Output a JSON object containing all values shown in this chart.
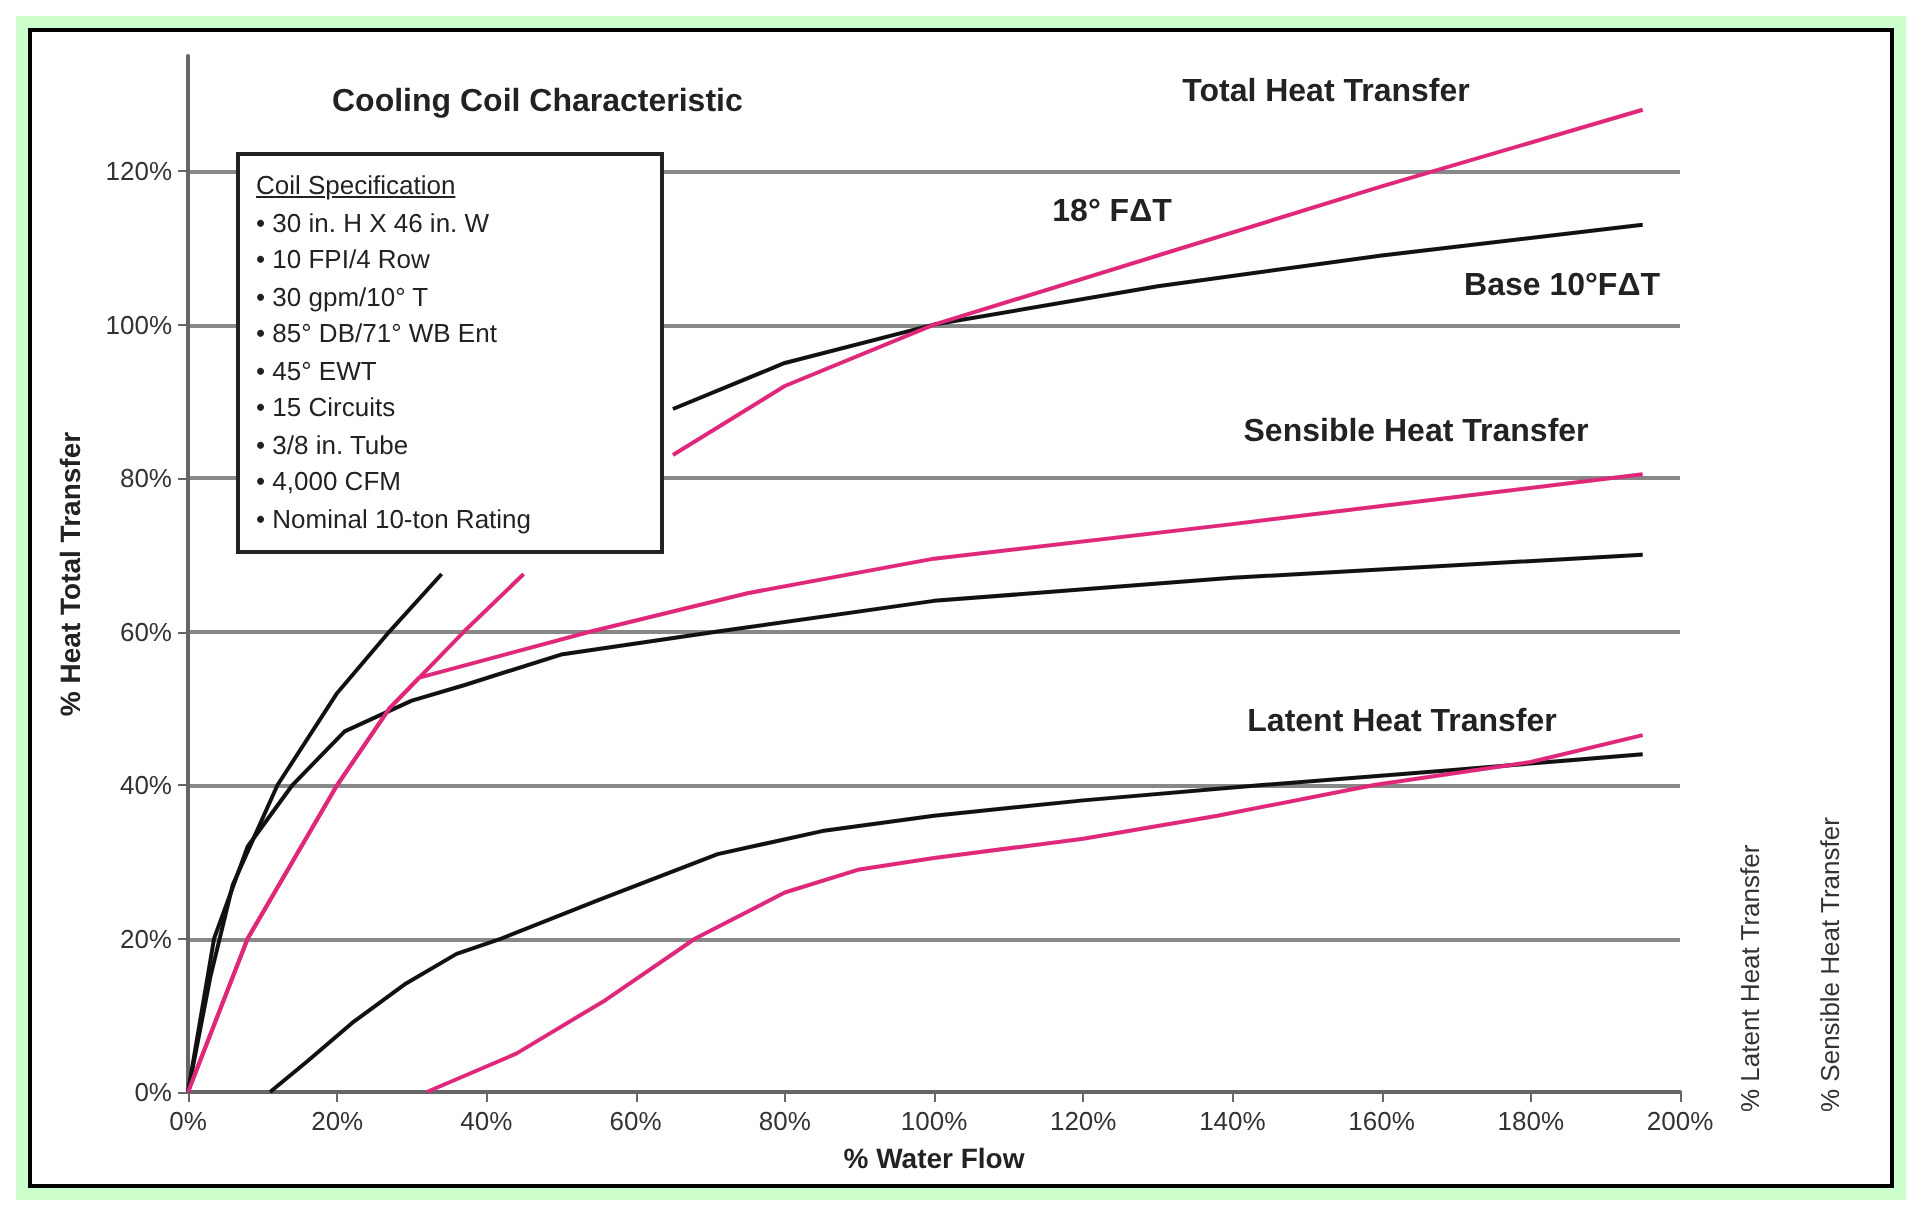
{
  "chart_data": {
    "type": "line",
    "title": "Cooling Coil Characteristic",
    "xlabel": "% Water Flow",
    "ylabel": "% Heat Total Transfer",
    "xlim": [
      0,
      200
    ],
    "ylim": [
      0,
      135
    ],
    "xticks": [
      {
        "value": 0,
        "label": "0%"
      },
      {
        "value": 20,
        "label": "20%"
      },
      {
        "value": 40,
        "label": "40%"
      },
      {
        "value": 60,
        "label": "60%"
      },
      {
        "value": 80,
        "label": "80%"
      },
      {
        "value": 100,
        "label": "100%"
      },
      {
        "value": 120,
        "label": "120%"
      },
      {
        "value": 140,
        "label": "140%"
      },
      {
        "value": 160,
        "label": "160%"
      },
      {
        "value": 180,
        "label": "180%"
      },
      {
        "value": 200,
        "label": "200%"
      }
    ],
    "yticks": [
      {
        "value": 0,
        "label": "0%"
      },
      {
        "value": 20,
        "label": "20%"
      },
      {
        "value": 40,
        "label": "40%"
      },
      {
        "value": 60,
        "label": "60%"
      },
      {
        "value": 80,
        "label": "80%"
      },
      {
        "value": 100,
        "label": "100%"
      },
      {
        "value": 120,
        "label": "120%"
      }
    ],
    "grid": "y",
    "marker": "none",
    "line_style": "solid",
    "series": [
      {
        "color": "#111111",
        "x": [
          0,
          3,
          6,
          12,
          20,
          27,
          34,
          44,
          55,
          65,
          80,
          100,
          130,
          160,
          195
        ],
        "values": [
          0,
          15,
          27,
          40,
          52,
          60,
          67.5,
          null,
          null,
          89,
          95,
          100,
          105,
          109,
          113
        ]
      },
      {
        "color": "#e0287a",
        "x": [
          0,
          4,
          8,
          14,
          20,
          27,
          37,
          45,
          55,
          65,
          80,
          100,
          130,
          160,
          195
        ],
        "values": [
          0,
          10,
          20,
          30,
          40,
          50,
          60,
          67.5,
          null,
          83,
          92,
          100,
          109,
          118,
          128
        ]
      },
      {
        "color": "#111111",
        "x": [
          0,
          3.5,
          8,
          14,
          21,
          30,
          37,
          50,
          71,
          100,
          140,
          195
        ],
        "values": [
          0,
          20,
          32,
          40,
          47,
          51,
          53,
          57,
          60,
          64,
          67,
          70
        ]
      },
      {
        "color": "#e0287a",
        "x": [
          0,
          8,
          20,
          27,
          31,
          54,
          75,
          100,
          140,
          195
        ],
        "values": [
          0,
          20,
          40,
          50,
          54,
          60,
          65,
          69.5,
          74,
          80.5
        ]
      },
      {
        "color": "#111111",
        "x": [
          11,
          16,
          22,
          29,
          36,
          42,
          55,
          71,
          85,
          100,
          120,
          144,
          170,
          195
        ],
        "values": [
          0,
          4,
          9,
          14,
          18,
          20,
          25,
          31,
          34,
          36,
          38,
          40,
          42,
          44
        ]
      },
      {
        "color": "#e0287a",
        "x": [
          32,
          44,
          56,
          68,
          80,
          90,
          100,
          120,
          138,
          159,
          180,
          195
        ],
        "values": [
          0,
          5,
          12,
          20,
          26,
          29,
          30.5,
          33,
          36,
          40,
          43,
          46.5
        ]
      }
    ],
    "annotations": [
      "Coil Specification\n• 30 in. H X 46 in. W\n• 10 FPI/4 Row\n• 30 gpm/10°  T\n• 85° DB/71° WB Ent\n• 45° EWT\n• 15 Circuits\n• 3/8 in. Tube\n• 4,000 CFM\n• Nominal 10-ton Rating",
      "% Latent Heat Transfer",
      "% Sensible Heat Transfer",
      "Total Heat Transfer",
      "18° FΔT",
      "Base 10°FΔT",
      "Sensible Heat Transfer",
      "Latent Heat Transfer"
    ]
  }
}
